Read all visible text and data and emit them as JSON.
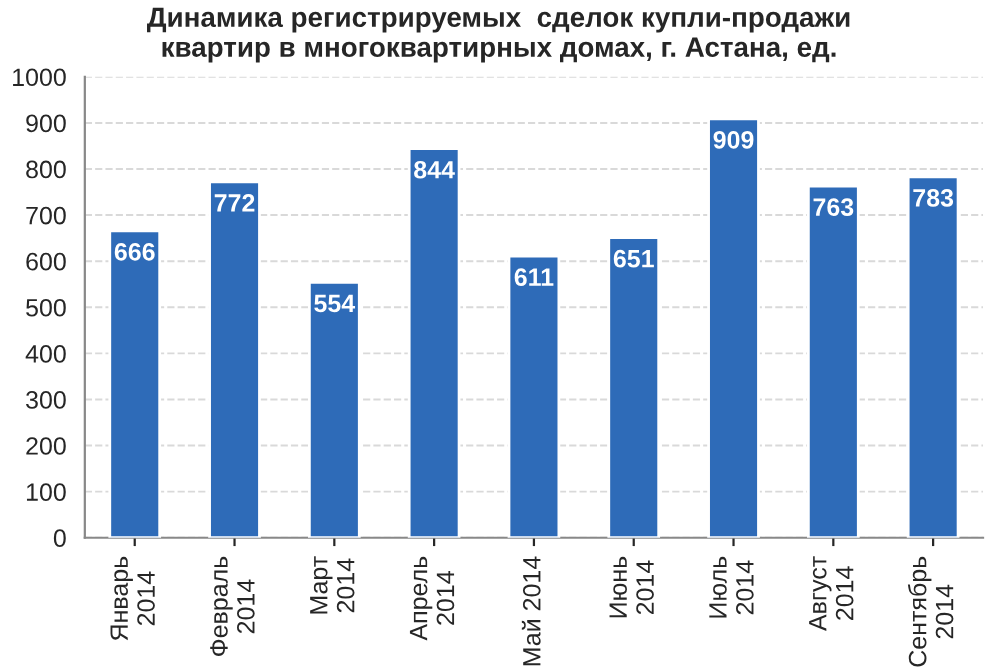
{
  "chart_data": {
    "type": "bar",
    "title": "Динамика регистрируемых  сделок купли-продажи\nквартир в многоквартирных домах, г. Астана, ед.",
    "categories": [
      "Январь\n2014",
      "Февраль\n2014",
      "Март\n2014",
      "Апрель\n2014",
      "Май 2014",
      "Июнь\n2014",
      "Июль\n2014",
      "Август\n2014",
      "Сентябрь\n2014"
    ],
    "values": [
      666,
      772,
      554,
      844,
      611,
      651,
      909,
      763,
      783
    ],
    "color": "#2e6bb8",
    "data_labels": true,
    "grid": "y",
    "ylim": [
      0,
      1000
    ],
    "yticks": [
      0,
      100,
      200,
      300,
      400,
      500,
      600,
      700,
      800,
      900,
      1000
    ]
  }
}
